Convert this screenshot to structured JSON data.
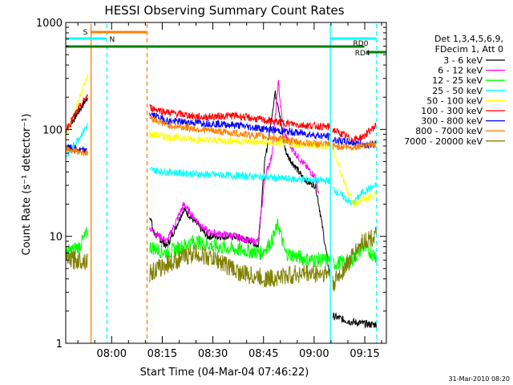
{
  "chart_data": {
    "type": "line",
    "title": "HESSI Observing Summary Count Rates",
    "xlabel": "Start Time (04-Mar-04 07:46:22)",
    "ylabel": "Count Rate (s⁻¹ detector⁻¹)",
    "y_scale": "log",
    "ylim": [
      1,
      1000
    ],
    "xlim_minutes_after_start": [
      0,
      95
    ],
    "x_ticks": [
      {
        "label": "08:00",
        "minute": 13.6
      },
      {
        "label": "08:15",
        "minute": 28.6
      },
      {
        "label": "08:30",
        "minute": 43.6
      },
      {
        "label": "08:45",
        "minute": 58.6
      },
      {
        "label": "09:00",
        "minute": 73.6
      },
      {
        "label": "09:15",
        "minute": 88.6
      }
    ],
    "y_ticks": [
      {
        "label": "1",
        "value": 1
      },
      {
        "label": "10",
        "value": 10
      },
      {
        "label": "100",
        "value": 100
      },
      {
        "label": "1000",
        "value": 1000
      }
    ],
    "legend_header": [
      "Det 1,3,4,5,6,9,",
      "FDecim 1, Att 0"
    ],
    "legend_position": "right",
    "timestamp": "31-Mar-2010 08:20",
    "flags": [
      {
        "label": "S",
        "color": "#ff8000",
        "start": 7.5,
        "end": 24
      },
      {
        "label": "N",
        "color": "#00ffff",
        "start": 0,
        "end": 12
      },
      {
        "label": "RD0",
        "color": "#00ffff",
        "start": 78.5,
        "end": 92
      },
      {
        "label": "RD4",
        "color": "#008000",
        "start": 89,
        "end": 95
      }
    ],
    "green_bar": {
      "color": "#008000",
      "start": 0,
      "end": 88.5
    },
    "vlines": [
      {
        "minute": 7.5,
        "color": "#ff8000",
        "dash": false
      },
      {
        "minute": 12.2,
        "color": "#00ffff",
        "dash": true
      },
      {
        "minute": 24.1,
        "color": "#ff8000",
        "dash": true
      },
      {
        "minute": 78.4,
        "color": "#00ffff",
        "dash": false
      },
      {
        "minute": 92.1,
        "color": "#00ffff",
        "dash": true
      }
    ],
    "segments": [
      [
        0,
        6.5
      ],
      [
        24.9,
        78.4
      ],
      [
        79.1,
        92.1
      ]
    ],
    "series": [
      {
        "name": "3 - 6 keV",
        "color": "#000000",
        "points": [
          [
            0,
            95
          ],
          [
            6.5,
            200
          ],
          [
            24.9,
            16
          ],
          [
            26,
            11
          ],
          [
            30,
            8
          ],
          [
            35,
            18
          ],
          [
            38,
            14
          ],
          [
            42,
            10
          ],
          [
            50,
            10
          ],
          [
            55,
            9
          ],
          [
            57,
            8
          ],
          [
            59,
            50
          ],
          [
            60,
            80
          ],
          [
            61,
            130
          ],
          [
            62,
            220
          ],
          [
            63,
            170
          ],
          [
            64,
            100
          ],
          [
            65,
            65
          ],
          [
            66,
            55
          ],
          [
            68,
            45
          ],
          [
            70,
            36
          ],
          [
            72,
            32
          ],
          [
            74,
            30
          ],
          [
            75,
            20
          ],
          [
            78.4,
            4
          ],
          [
            79.1,
            1.8
          ],
          [
            84,
            1.6
          ],
          [
            90,
            1.5
          ],
          [
            92.1,
            1.5
          ]
        ]
      },
      {
        "name": "6 - 12 keV",
        "color": "#ff00ff",
        "points": [
          [
            24.9,
            12
          ],
          [
            26,
            11
          ],
          [
            30,
            9
          ],
          [
            35,
            20
          ],
          [
            38,
            15
          ],
          [
            42,
            11
          ],
          [
            50,
            10
          ],
          [
            55,
            9
          ],
          [
            57,
            9
          ],
          [
            59,
            35
          ],
          [
            60,
            45
          ],
          [
            61,
            55
          ],
          [
            62,
            120
          ],
          [
            63,
            280
          ],
          [
            64,
            130
          ],
          [
            65,
            90
          ],
          [
            66,
            75
          ],
          [
            68,
            60
          ],
          [
            70,
            50
          ],
          [
            72,
            42
          ],
          [
            74,
            36
          ],
          [
            75,
            25
          ]
        ]
      },
      {
        "name": "12 - 25 keV",
        "color": "#00ff00",
        "points": [
          [
            0,
            7
          ],
          [
            4,
            8
          ],
          [
            6.5,
            11
          ],
          [
            24.9,
            8
          ],
          [
            30,
            7
          ],
          [
            38,
            9
          ],
          [
            45,
            8
          ],
          [
            58,
            7
          ],
          [
            61,
            9
          ],
          [
            63,
            13
          ],
          [
            65,
            7
          ],
          [
            72,
            6
          ],
          [
            78.4,
            6
          ],
          [
            79.1,
            5.5
          ],
          [
            85,
            6
          ],
          [
            88,
            8
          ],
          [
            92.1,
            6.5
          ]
        ]
      },
      {
        "name": "25 - 50 keV",
        "color": "#00ffff",
        "points": [
          [
            0,
            55
          ],
          [
            6.5,
            110
          ],
          [
            24.9,
            42
          ],
          [
            30,
            40
          ],
          [
            40,
            38
          ],
          [
            50,
            37
          ],
          [
            58,
            36
          ],
          [
            62,
            35
          ],
          [
            70,
            34
          ],
          [
            78.4,
            33
          ],
          [
            79.1,
            28
          ],
          [
            85,
            20
          ],
          [
            88,
            26
          ],
          [
            92.1,
            30
          ]
        ]
      },
      {
        "name": "50 - 100 keV",
        "color": "#ffff00",
        "points": [
          [
            0,
            85
          ],
          [
            6.5,
            320
          ],
          [
            24.9,
            90
          ],
          [
            30,
            85
          ],
          [
            40,
            80
          ],
          [
            50,
            78
          ],
          [
            60,
            75
          ],
          [
            70,
            72
          ],
          [
            78.4,
            70
          ],
          [
            79.1,
            65
          ],
          [
            85,
            20
          ],
          [
            88,
            22
          ],
          [
            92.1,
            25
          ]
        ]
      },
      {
        "name": "100 - 300 keV",
        "color": "#ff0000",
        "points": [
          [
            0,
            100
          ],
          [
            6.5,
            210
          ],
          [
            24.9,
            160
          ],
          [
            30,
            145
          ],
          [
            40,
            130
          ],
          [
            50,
            135
          ],
          [
            60,
            120
          ],
          [
            70,
            110
          ],
          [
            78.4,
            105
          ],
          [
            79.1,
            100
          ],
          [
            85,
            80
          ],
          [
            88,
            85
          ],
          [
            92.1,
            110
          ]
        ]
      },
      {
        "name": "300 - 800 keV",
        "color": "#0000ff",
        "points": [
          [
            0,
            68
          ],
          [
            6.5,
            62
          ],
          [
            24.9,
            140
          ],
          [
            30,
            120
          ],
          [
            40,
            115
          ],
          [
            50,
            110
          ],
          [
            60,
            100
          ],
          [
            70,
            92
          ],
          [
            78.4,
            85
          ],
          [
            79.1,
            80
          ],
          [
            85,
            75
          ],
          [
            88,
            72
          ],
          [
            92.1,
            73
          ]
        ]
      },
      {
        "name": "800 - 7000 keV",
        "color": "#ff8000",
        "points": [
          [
            0,
            66
          ],
          [
            6.5,
            60
          ],
          [
            24.9,
            130
          ],
          [
            30,
            110
          ],
          [
            40,
            100
          ],
          [
            50,
            92
          ],
          [
            60,
            85
          ],
          [
            70,
            75
          ],
          [
            78.4,
            72
          ],
          [
            79.1,
            70
          ],
          [
            85,
            68
          ],
          [
            88,
            72
          ],
          [
            92.1,
            72
          ]
        ]
      },
      {
        "name": "7000 - 20000 keV",
        "color": "#808000",
        "points": [
          [
            0,
            6
          ],
          [
            6.5,
            6
          ],
          [
            24.9,
            4.5
          ],
          [
            30,
            5.5
          ],
          [
            38,
            7
          ],
          [
            45,
            6
          ],
          [
            52,
            4.5
          ],
          [
            60,
            4
          ],
          [
            70,
            4.5
          ],
          [
            78.4,
            4.5
          ],
          [
            79.1,
            3.5
          ],
          [
            85,
            6.5
          ],
          [
            88,
            9
          ],
          [
            92.1,
            10
          ]
        ]
      }
    ]
  }
}
